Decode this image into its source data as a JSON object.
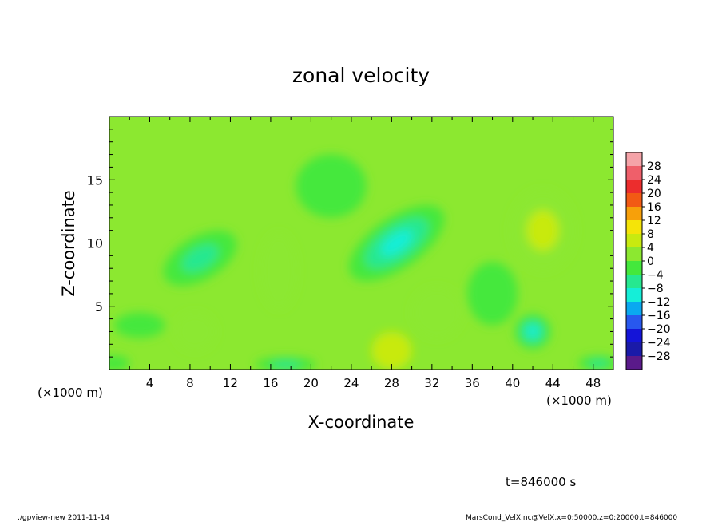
{
  "chart_data": {
    "type": "heatmap",
    "title": "zonal velocity",
    "xlabel": "X-coordinate",
    "ylabel": "Z-coordinate",
    "x_unit_left": "(×1000 m)",
    "x_unit_right": "(×1000 m)",
    "xlim": [
      0,
      50
    ],
    "ylim": [
      0,
      20
    ],
    "x_ticks": [
      4,
      8,
      12,
      16,
      20,
      24,
      28,
      32,
      36,
      40,
      44,
      48
    ],
    "y_ticks": [
      5,
      10,
      15
    ],
    "colorbar": {
      "labels": [
        "28",
        "24",
        "20",
        "16",
        "12",
        "8",
        "4",
        "0",
        "−4",
        "−8",
        "−12",
        "−16",
        "−20",
        "−24",
        "−28"
      ],
      "bins": [
        {
          "lo": 28,
          "hi": 32,
          "color": "#f5a3a8"
        },
        {
          "lo": 24,
          "hi": 28,
          "color": "#ef5f6a"
        },
        {
          "lo": 20,
          "hi": 24,
          "color": "#ec2d2d"
        },
        {
          "lo": 16,
          "hi": 20,
          "color": "#f25a14"
        },
        {
          "lo": 12,
          "hi": 16,
          "color": "#f7a00a"
        },
        {
          "lo": 8,
          "hi": 12,
          "color": "#f5e408"
        },
        {
          "lo": 4,
          "hi": 8,
          "color": "#c8ea10"
        },
        {
          "lo": 0,
          "hi": 4,
          "color": "#8ce830"
        },
        {
          "lo": -4,
          "hi": 0,
          "color": "#44e83c"
        },
        {
          "lo": -8,
          "hi": -4,
          "color": "#26e890"
        },
        {
          "lo": -12,
          "hi": -8,
          "color": "#15eed8"
        },
        {
          "lo": -16,
          "hi": -12,
          "color": "#0aa8f0"
        },
        {
          "lo": -20,
          "hi": -16,
          "color": "#2858ee"
        },
        {
          "lo": -24,
          "hi": -20,
          "color": "#1414d8"
        },
        {
          "lo": -28,
          "hi": -24,
          "color": "#1a1aa8"
        },
        {
          "lo": -32,
          "hi": -28,
          "color": "#5a1a8a"
        }
      ]
    },
    "background_value": 0.5,
    "features": [
      {
        "x": 28.5,
        "z": 10.0,
        "sx": 5.5,
        "sz": 2.0,
        "rot": -35,
        "v": -11
      },
      {
        "x": 9.0,
        "z": 8.8,
        "sx": 4.0,
        "sz": 1.7,
        "rot": -30,
        "v": -7
      },
      {
        "x": 43.0,
        "z": 11.0,
        "sx": 3.2,
        "sz": 3.2,
        "rot": 0,
        "v": 6
      },
      {
        "x": 42.0,
        "z": 3.0,
        "sx": 1.8,
        "sz": 1.4,
        "rot": 0,
        "v": -11
      },
      {
        "x": 16.8,
        "z": 7.8,
        "sx": 1.8,
        "sz": 3.0,
        "rot": 0,
        "v": 3.5
      },
      {
        "x": 28.0,
        "z": 1.5,
        "sx": 2.0,
        "sz": 1.5,
        "rot": 0,
        "v": 4
      },
      {
        "x": 32.5,
        "z": 4.5,
        "sx": 2.5,
        "sz": 2.0,
        "rot": 0,
        "v": 3
      },
      {
        "x": 8.5,
        "z": 3.0,
        "sx": 2.0,
        "sz": 1.5,
        "rot": 0,
        "v": 2.5
      },
      {
        "x": 3.0,
        "z": 3.5,
        "sx": 2.5,
        "sz": 1.0,
        "rot": 0,
        "v": -2.5
      },
      {
        "x": 17.5,
        "z": 0.4,
        "sx": 3.0,
        "sz": 0.6,
        "rot": 0,
        "v": -5
      },
      {
        "x": 48.5,
        "z": 0.5,
        "sx": 2.0,
        "sz": 0.6,
        "rot": 0,
        "v": -5
      },
      {
        "x": 0.5,
        "z": 0.5,
        "sx": 1.5,
        "sz": 0.6,
        "rot": 0,
        "v": -4
      },
      {
        "x": 38.0,
        "z": 6.0,
        "sx": 2.5,
        "sz": 2.5,
        "rot": 0,
        "v": -3
      },
      {
        "x": 22.0,
        "z": 14.5,
        "sx": 3.5,
        "sz": 2.5,
        "rot": 0,
        "v": -2
      }
    ]
  },
  "annotations": {
    "time": "t=846000 s",
    "footer_left": "./gpview-new  2011-11-14",
    "footer_right": "MarsCond_VelX.nc@VelX,x=0:50000,z=0:20000,t=846000"
  }
}
